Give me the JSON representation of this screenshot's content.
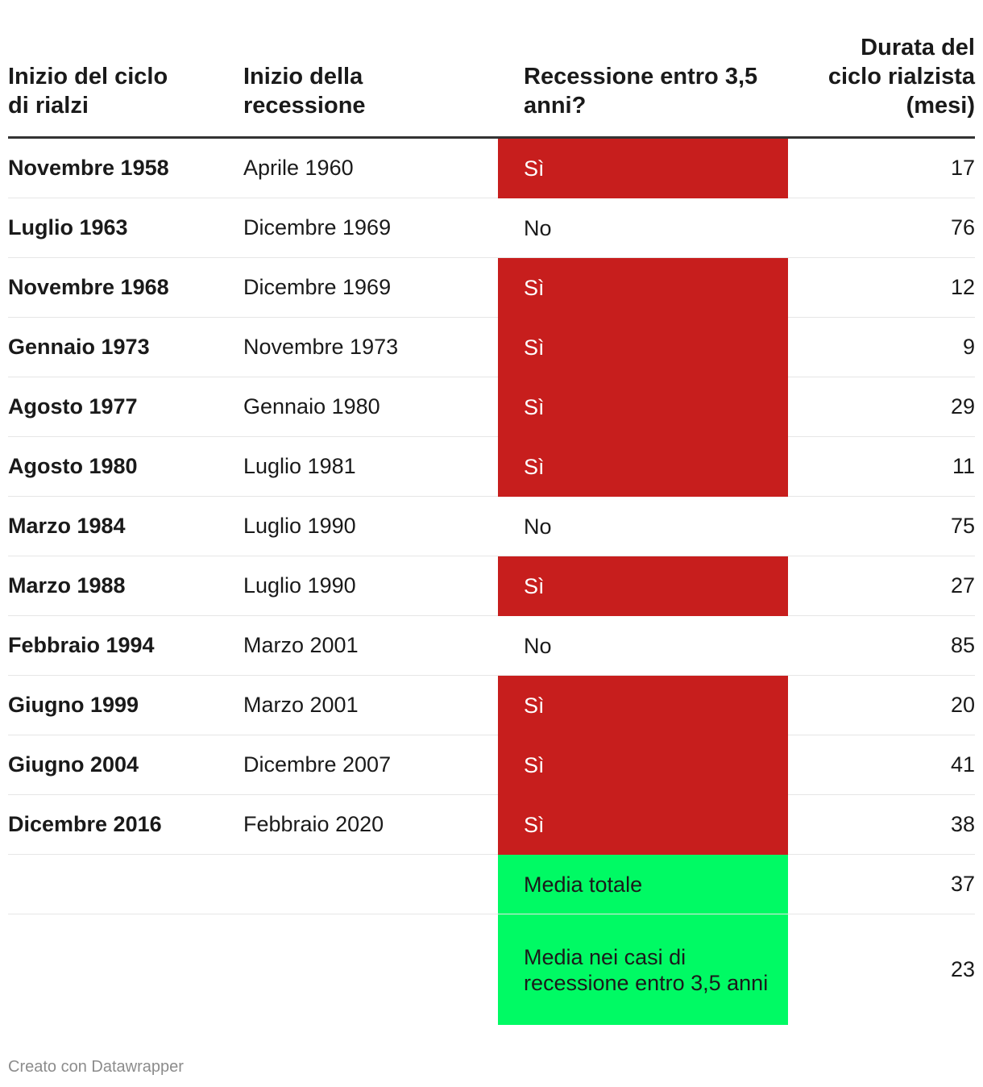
{
  "chart_data": {
    "type": "table",
    "columns": [
      "Inizio del ciclo\ndi rialzi",
      "Inizio della\nrecessione",
      "Recessione entro 3,5\nanni?",
      "Durata del\nciclo rialzista\n(mesi)"
    ],
    "rows": [
      {
        "start": "Novembre 1958",
        "recession": "Aprile 1960",
        "within": "Sì",
        "months": "17",
        "highlight": "red"
      },
      {
        "start": "Luglio 1963",
        "recession": "Dicembre 1969",
        "within": "No",
        "months": "76",
        "highlight": "none"
      },
      {
        "start": "Novembre 1968",
        "recession": "Dicembre 1969",
        "within": "Sì",
        "months": "12",
        "highlight": "red"
      },
      {
        "start": "Gennaio 1973",
        "recession": "Novembre 1973",
        "within": "Sì",
        "months": "9",
        "highlight": "red"
      },
      {
        "start": "Agosto 1977",
        "recession": "Gennaio 1980",
        "within": "Sì",
        "months": "29",
        "highlight": "red"
      },
      {
        "start": "Agosto 1980",
        "recession": "Luglio 1981",
        "within": "Sì",
        "months": "11",
        "highlight": "red"
      },
      {
        "start": "Marzo 1984",
        "recession": "Luglio 1990",
        "within": "No",
        "months": "75",
        "highlight": "none"
      },
      {
        "start": "Marzo 1988",
        "recession": "Luglio 1990",
        "within": "Sì",
        "months": "27",
        "highlight": "red"
      },
      {
        "start": "Febbraio 1994",
        "recession": "Marzo 2001",
        "within": "No",
        "months": "85",
        "highlight": "none"
      },
      {
        "start": "Giugno 1999",
        "recession": "Marzo 2001",
        "within": "Sì",
        "months": "20",
        "highlight": "red"
      },
      {
        "start": "Giugno 2004",
        "recession": "Dicembre 2007",
        "within": "Sì",
        "months": "41",
        "highlight": "red"
      },
      {
        "start": "Dicembre 2016",
        "recession": "Febbraio 2020",
        "within": "Sì",
        "months": "38",
        "highlight": "red"
      },
      {
        "start": "",
        "recession": "",
        "within": "Media totale",
        "months": "37",
        "highlight": "green"
      },
      {
        "start": "",
        "recession": "",
        "within": "Media nei casi di recessione entro 3,5 anni",
        "months": "23",
        "highlight": "green"
      }
    ]
  },
  "colors": {
    "yes": "#c71e1d",
    "summary": "#00fa64"
  },
  "footer": {
    "credit": "Creato con Datawrapper"
  }
}
